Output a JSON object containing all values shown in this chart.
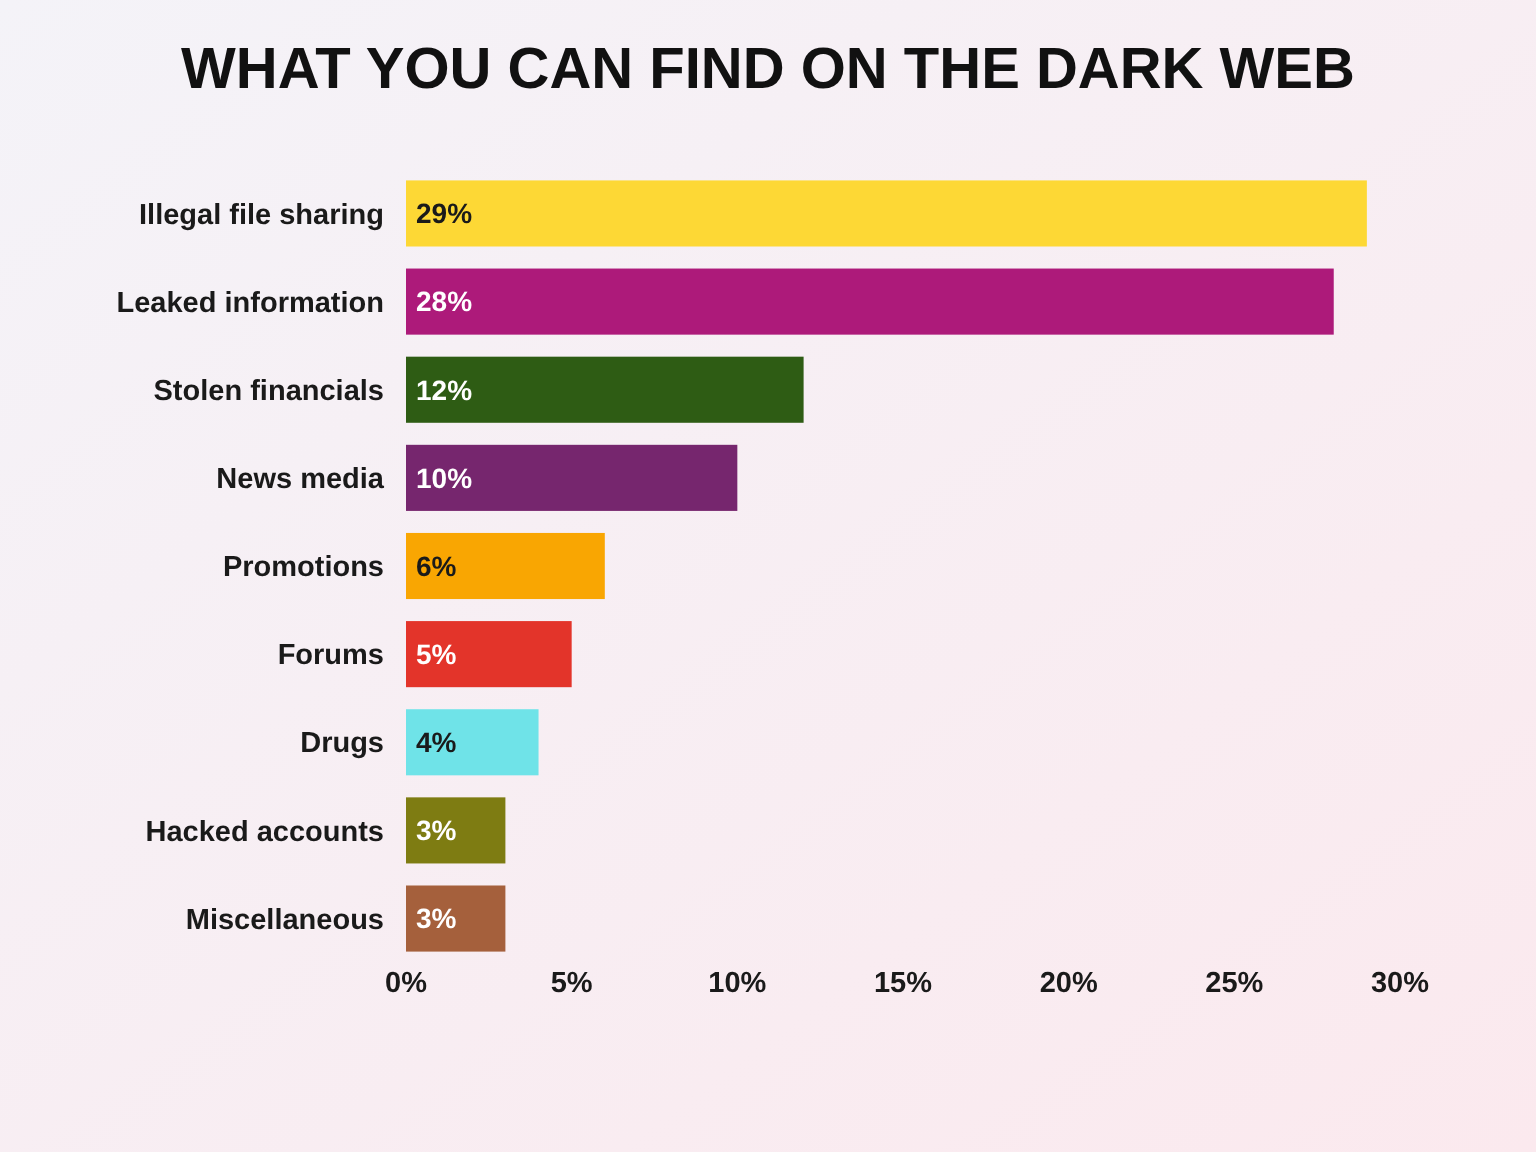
{
  "chart_data": {
    "type": "bar",
    "orientation": "horizontal",
    "title": "WHAT YOU CAN FIND ON THE DARK WEB",
    "categories": [
      "Illegal file sharing",
      "Leaked information",
      "Stolen financials",
      "News media",
      "Promotions",
      "Forums",
      "Drugs",
      "Hacked accounts",
      "Miscellaneous"
    ],
    "values": [
      29,
      28,
      12,
      10,
      6,
      5,
      4,
      3,
      3
    ],
    "colors": [
      "#fdd835",
      "#ad1a7a",
      "#2e5c14",
      "#76266e",
      "#f9a602",
      "#e3342a",
      "#6fe3e8",
      "#7e7c12",
      "#a5603c"
    ],
    "value_labels": [
      "29%",
      "28%",
      "12%",
      "10%",
      "6%",
      "5%",
      "4%",
      "3%",
      "3%"
    ],
    "xlim": [
      0,
      30
    ],
    "xticks": [
      {
        "value": 0,
        "label": "0%"
      },
      {
        "value": 5,
        "label": "5%"
      },
      {
        "value": 10,
        "label": "10%"
      },
      {
        "value": 15,
        "label": "15%"
      },
      {
        "value": 20,
        "label": "20%"
      },
      {
        "value": 25,
        "label": "25%"
      },
      {
        "value": 30,
        "label": "30%"
      }
    ],
    "grid": false
  }
}
